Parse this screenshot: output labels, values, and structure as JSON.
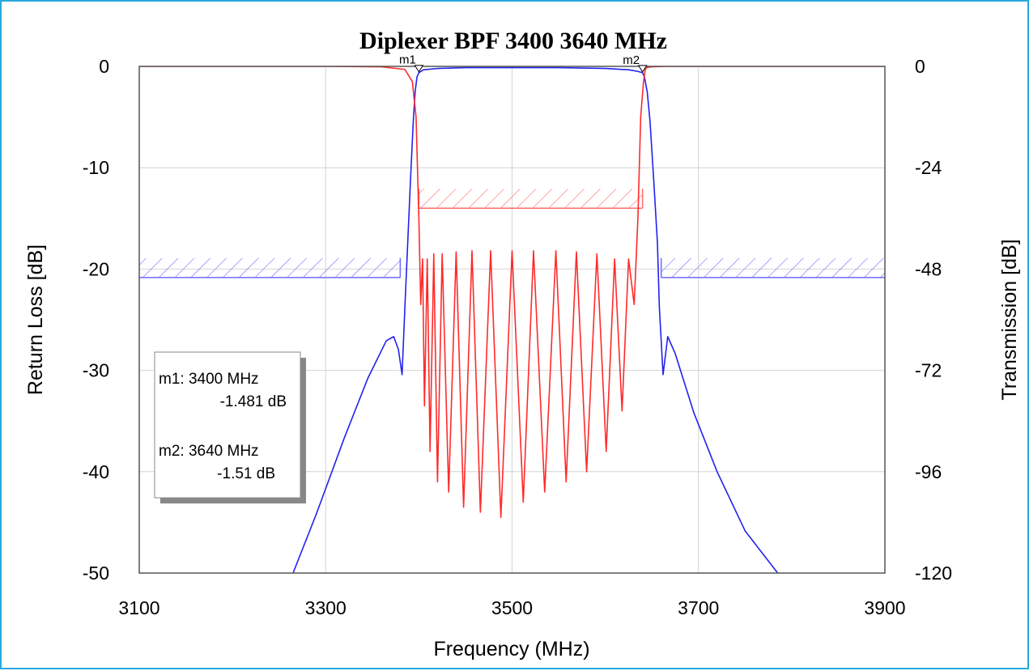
{
  "chart_data": {
    "type": "line",
    "title": "Diplexer BPF 3400 3640 MHz",
    "xlabel": "Frequency (MHz)",
    "ylabel_left": "Return Loss [dB]",
    "ylabel_right": "Transmission [dB]",
    "xlim": [
      3100,
      3900
    ],
    "ylim_left": [
      -50,
      0
    ],
    "ylim_right": [
      -120,
      0
    ],
    "x_ticks": [
      "3100",
      "3300",
      "3500",
      "3700",
      "3900"
    ],
    "y_ticks_left": [
      "0",
      "-10",
      "-20",
      "-30",
      "-40",
      "-50"
    ],
    "y_ticks_right": [
      "0",
      "-24",
      "-48",
      "-72",
      "-96",
      "-120"
    ],
    "grid": true,
    "colors": {
      "return_loss": "#ff2a2a",
      "transmission": "#2222ee",
      "frame": "#2aa9de"
    },
    "series": [
      {
        "axis": "right",
        "color": "#2222ee",
        "x": [
          3265,
          3290,
          3320,
          3345,
          3365,
          3373,
          3378,
          3382,
          3385,
          3388,
          3391,
          3394,
          3396,
          3398,
          3400,
          3405,
          3420,
          3450,
          3500,
          3550,
          3600,
          3625,
          3635,
          3640,
          3642,
          3645,
          3648,
          3652,
          3656,
          3658,
          3662,
          3667,
          3675,
          3695,
          3720,
          3750,
          3785
        ],
        "y": [
          -120,
          -106,
          -88,
          -74,
          -65,
          -64,
          -67,
          -73,
          -57,
          -42,
          -27,
          -13,
          -6,
          -2.5,
          -1.5,
          -0.8,
          -0.5,
          -0.3,
          -0.3,
          -0.3,
          -0.5,
          -0.8,
          -1.2,
          -1.5,
          -2.5,
          -6,
          -13,
          -27,
          -42,
          -57,
          -73,
          -64,
          -68,
          -82,
          -96,
          -110,
          -120
        ]
      },
      {
        "axis": "left",
        "color": "#ff2a2a",
        "x": [
          3100,
          3300,
          3360,
          3385,
          3393,
          3397,
          3400,
          3402,
          3404,
          3406,
          3409,
          3412,
          3416,
          3420,
          3425,
          3432,
          3440,
          3448,
          3457,
          3466,
          3477,
          3488,
          3500,
          3512,
          3523,
          3535,
          3547,
          3558,
          3569,
          3580,
          3591,
          3601,
          3610,
          3618,
          3625,
          3631,
          3635,
          3638,
          3641,
          3643,
          3645,
          3650,
          3665,
          3690,
          3750,
          3900
        ],
        "y": [
          0,
          0,
          -0.05,
          -0.3,
          -1.5,
          -5,
          -15,
          -23.5,
          -19,
          -33.5,
          -19,
          -38,
          -18.5,
          -41,
          -18.5,
          -42,
          -18.3,
          -43.5,
          -18.2,
          -44,
          -18.2,
          -44.5,
          -18.2,
          -43,
          -18.2,
          -42,
          -18.2,
          -41,
          -18.3,
          -40,
          -18.5,
          -38,
          -19,
          -34,
          -19,
          -23.5,
          -15,
          -5,
          -1.5,
          -0.3,
          -0.1,
          -0.05,
          0,
          0,
          0,
          0
        ]
      }
    ],
    "masks": [
      {
        "color": "#ff6b6b",
        "axis": "left",
        "x": [
          3400,
          3640
        ],
        "y": -14,
        "hatch_above": true
      },
      {
        "color": "#6b6bff",
        "axis": "right",
        "x": [
          3100,
          3380
        ],
        "y": -50,
        "hatch_above": true
      },
      {
        "color": "#6b6bff",
        "axis": "right",
        "x": [
          3660,
          3900
        ],
        "y": -50,
        "hatch_above": true
      }
    ],
    "markers": [
      {
        "label": "m1",
        "x": 3400,
        "y": -1.481
      },
      {
        "label": "m2",
        "x": 3640,
        "y": -1.51
      }
    ],
    "legend": {
      "placement": "lower-left",
      "entries": [
        {
          "line1": "m1: 3400 MHz",
          "line2": "-1.481 dB"
        },
        {
          "line1": "m2: 3640 MHz",
          "line2": "-1.51 dB"
        }
      ]
    }
  }
}
